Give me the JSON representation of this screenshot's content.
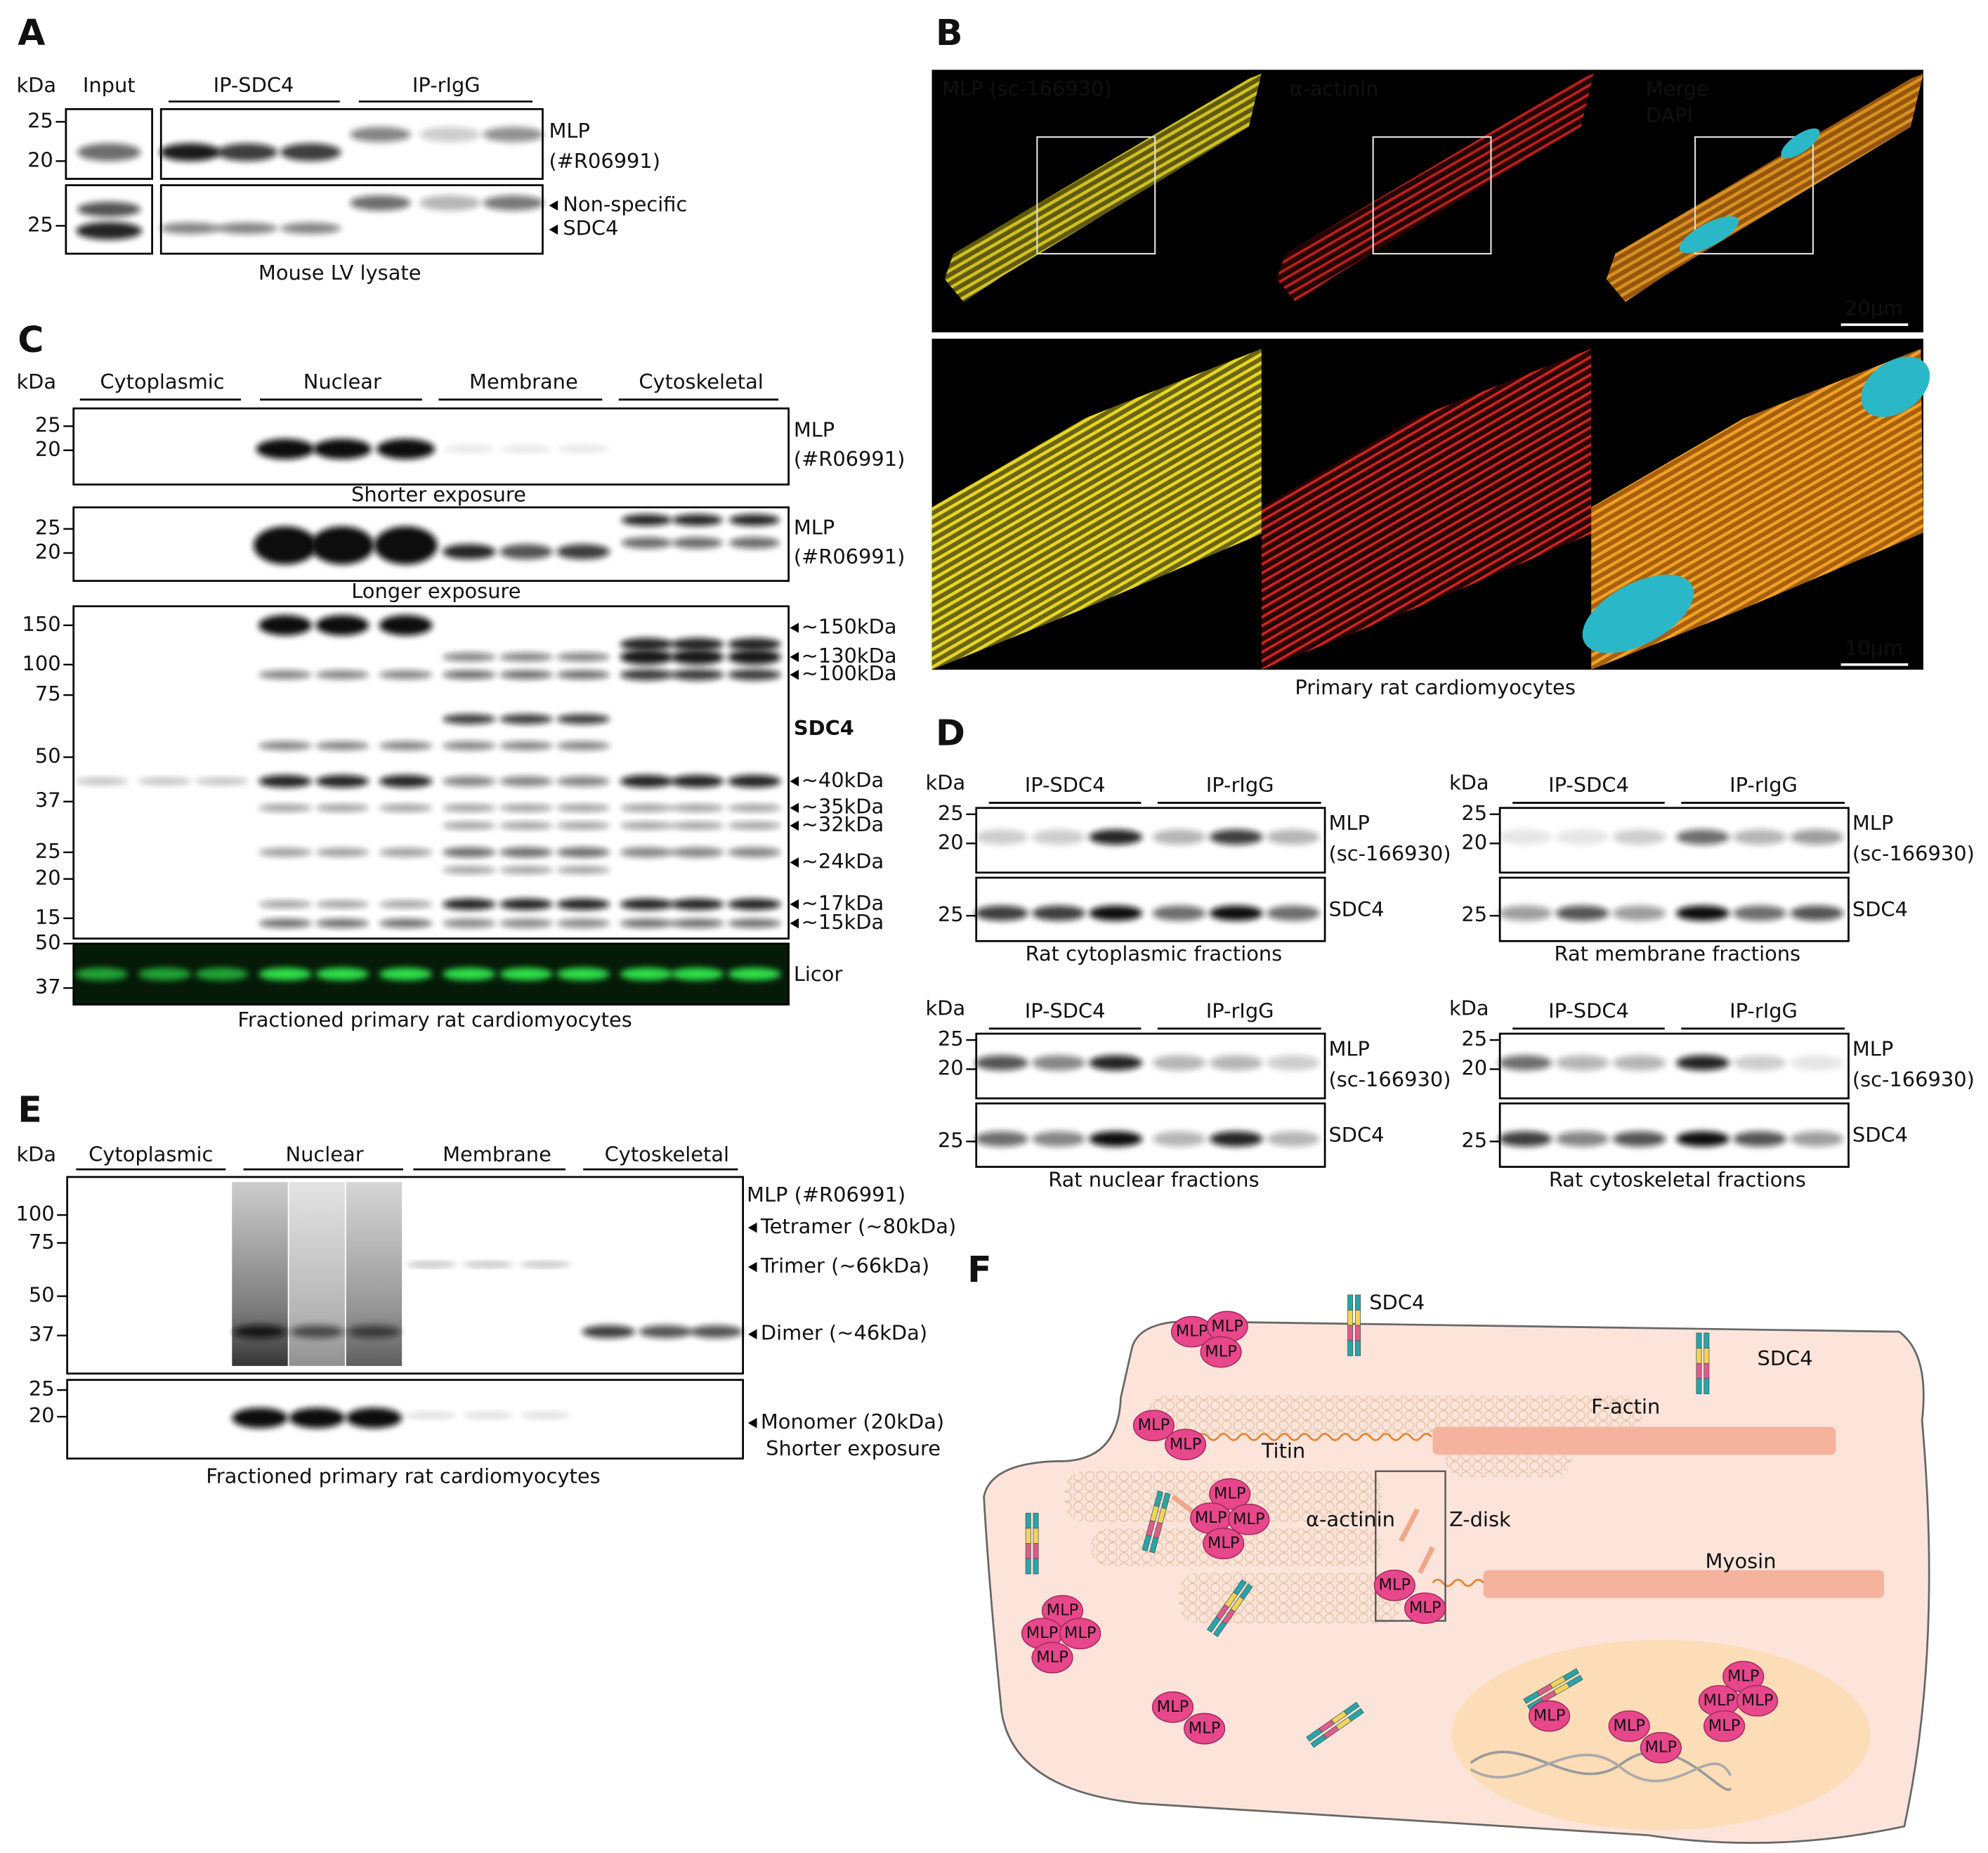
{
  "panels": {
    "A": {
      "label": "A",
      "kda": "kDa",
      "lanes": [
        "Input",
        "IP-SDC4",
        "IP-rIgG"
      ],
      "mw": [
        "25",
        "20",
        "25"
      ],
      "targets": [
        "MLP",
        "(#R06991)",
        "Non-specific",
        "SDC4"
      ],
      "caption": "Mouse LV lysate"
    },
    "B": {
      "label": "B",
      "channels": [
        "MLP (sc-166930)",
        "α-actinin",
        "Merge",
        "DAPI"
      ],
      "scale_bars": [
        "20μm",
        "10μm"
      ],
      "caption": "Primary rat cardiomyocytes"
    },
    "C": {
      "label": "C",
      "kda": "kDa",
      "fractions": [
        "Cytoplasmic",
        "Nuclear",
        "Membrane",
        "Cytoskeletal"
      ],
      "blots": [
        {
          "mw": [
            "25",
            "20"
          ],
          "targets": [
            "MLP",
            "(#R06991)"
          ],
          "caption": "Shorter exposure"
        },
        {
          "mw": [
            "25",
            "20"
          ],
          "targets": [
            "MLP",
            "(#R06991)"
          ],
          "caption": "Longer exposure"
        },
        {
          "mw": [
            "150",
            "100",
            "75",
            "50",
            "37",
            "25",
            "20",
            "15"
          ],
          "target": "SDC4",
          "bands": [
            "~150kDa",
            "~130kDa",
            "~100kDa",
            "~40kDa",
            "~35kDa",
            "~32kDa",
            "~24kDa",
            "~17kDa",
            "~15kDa"
          ]
        },
        {
          "mw": [
            "50",
            "37"
          ],
          "target": "Licor"
        }
      ],
      "caption": "Fractioned primary rat cardiomyocytes"
    },
    "D": {
      "label": "D",
      "blots": [
        {
          "kda": "kDa",
          "lanes": [
            "IP-SDC4",
            "IP-rIgG"
          ],
          "mw": [
            "25",
            "20",
            "25"
          ],
          "targets": [
            "MLP",
            "(sc-166930)",
            "SDC4"
          ],
          "caption": "Rat cytoplasmic fractions"
        },
        {
          "kda": "kDa",
          "lanes": [
            "IP-SDC4",
            "IP-rIgG"
          ],
          "mw": [
            "25",
            "20",
            "25"
          ],
          "targets": [
            "MLP",
            "(sc-166930)",
            "SDC4"
          ],
          "caption": "Rat membrane fractions"
        },
        {
          "kda": "kDa",
          "lanes": [
            "IP-SDC4",
            "IP-rIgG"
          ],
          "mw": [
            "25",
            "20",
            "25"
          ],
          "targets": [
            "MLP",
            "(sc-166930)",
            "SDC4"
          ],
          "caption": "Rat nuclear fractions"
        },
        {
          "kda": "kDa",
          "lanes": [
            "IP-SDC4",
            "IP-rIgG"
          ],
          "mw": [
            "25",
            "20",
            "25"
          ],
          "targets": [
            "MLP",
            "(sc-166930)",
            "SDC4"
          ],
          "caption": "Rat cytoskeletal fractions"
        }
      ]
    },
    "E": {
      "label": "E",
      "kda": "kDa",
      "fractions": [
        "Cytoplasmic",
        "Nuclear",
        "Membrane",
        "Cytoskeletal"
      ],
      "mw": [
        "100",
        "75",
        "50",
        "37",
        "25",
        "20"
      ],
      "target": "MLP (#R06991)",
      "bands": [
        "Tetramer (~80kDa)",
        "Trimer (~66kDa)",
        "Dimer (~46kDa)",
        "Monomer (20kDa)"
      ],
      "note": "Shorter exposure",
      "caption": "Fractioned primary rat cardiomyocytes"
    },
    "F": {
      "label": "F",
      "labels": [
        "SDC4",
        "SDC4",
        "F-actin",
        "Titin",
        "α-actinin",
        "Z-disk",
        "Myosin"
      ],
      "mlp": [
        "MLP",
        "MLP",
        "MLP",
        "MLP",
        "MLP",
        "MLP",
        "MLP",
        "MLP",
        "MLP",
        "MLP",
        "MLP",
        "MLP",
        "MLP",
        "MLP",
        "MLP",
        "MLP",
        "MLP",
        "MLP",
        "MLP",
        "MLP",
        "MLP",
        "MLP",
        "MLP",
        "MLP"
      ]
    }
  }
}
